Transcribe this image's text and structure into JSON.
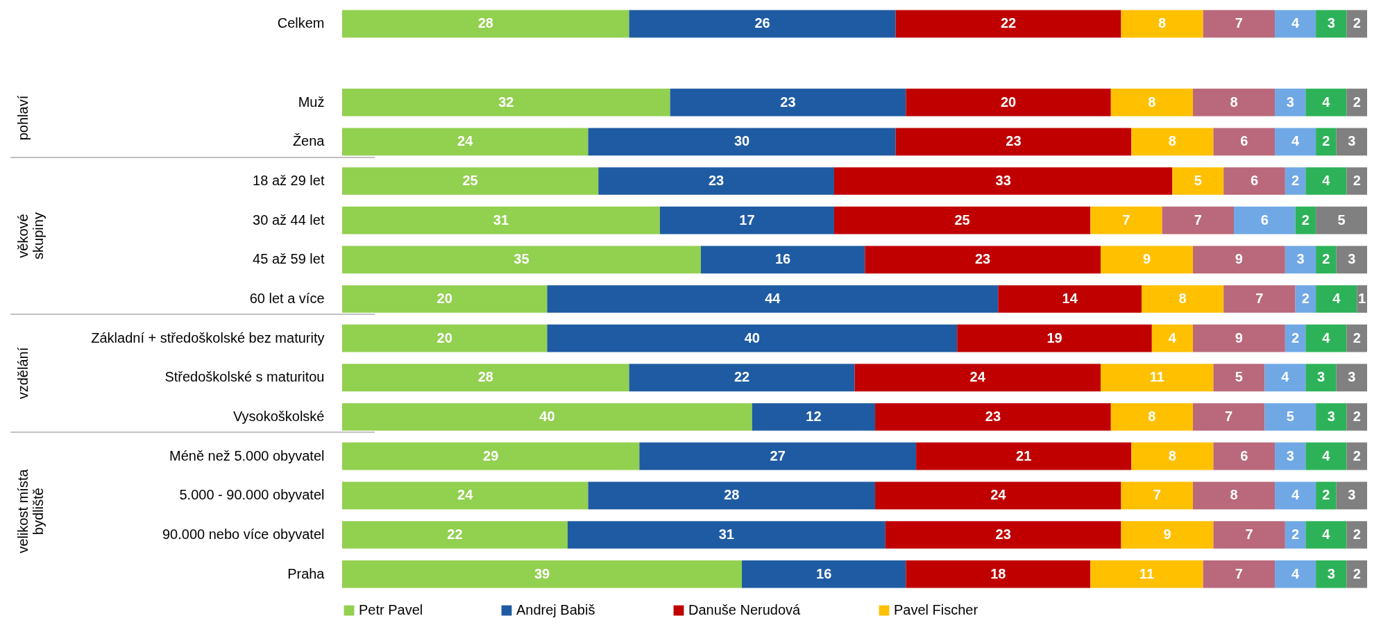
{
  "chart_data": {
    "type": "bar",
    "orientation": "horizontal",
    "stacked": true,
    "data_labels": true,
    "legend": "bottom",
    "categories": [
      "Celkem",
      null,
      "Muž",
      "Žena",
      "18 až 29 let",
      "30 až 44 let",
      "45 až 59 let",
      "60 let a více",
      "Základní + středoškolské bez maturity",
      "Středoškolské s maturitou",
      "Vysokoškolské",
      "Méně než 5.000 obyvatel",
      "5.000 - 90.000 obyvatel",
      "90.000 nebo více obyvatel",
      "Praha"
    ],
    "series": [
      {
        "name": "Petr Pavel",
        "color": "#92d050",
        "values": [
          28,
          null,
          32,
          24,
          25,
          31,
          35,
          20,
          20,
          28,
          40,
          29,
          24,
          22,
          39
        ]
      },
      {
        "name": "Andrej Babiš",
        "color": "#1f5ba3",
        "values": [
          26,
          null,
          23,
          30,
          23,
          17,
          16,
          44,
          40,
          22,
          12,
          27,
          28,
          31,
          16
        ]
      },
      {
        "name": "Danuše Nerudová",
        "color": "#c00000",
        "values": [
          22,
          null,
          20,
          23,
          33,
          25,
          23,
          14,
          19,
          24,
          23,
          21,
          24,
          23,
          18
        ]
      },
      {
        "name": "Pavel Fischer",
        "color": "#ffc000",
        "values": [
          8,
          null,
          8,
          8,
          5,
          7,
          9,
          8,
          4,
          11,
          8,
          8,
          7,
          9,
          11
        ]
      },
      {
        "color": "#b9697b",
        "values": [
          7,
          null,
          8,
          6,
          6,
          7,
          9,
          7,
          9,
          5,
          7,
          6,
          8,
          7,
          7
        ]
      },
      {
        "color": "#6fa8e5",
        "values": [
          4,
          null,
          3,
          4,
          2,
          6,
          3,
          2,
          2,
          4,
          5,
          3,
          4,
          2,
          4
        ]
      },
      {
        "color": "#2db259",
        "values": [
          3,
          null,
          4,
          2,
          4,
          2,
          2,
          4,
          4,
          3,
          3,
          4,
          2,
          4,
          3
        ]
      },
      {
        "color": "#808080",
        "values": [
          2,
          null,
          2,
          3,
          2,
          5,
          3,
          1,
          2,
          3,
          2,
          2,
          3,
          2,
          2
        ]
      }
    ],
    "annotations": [
      "pohlaví",
      "věkové skupiny",
      "vzdělání",
      "velikost místa bydliště"
    ]
  }
}
